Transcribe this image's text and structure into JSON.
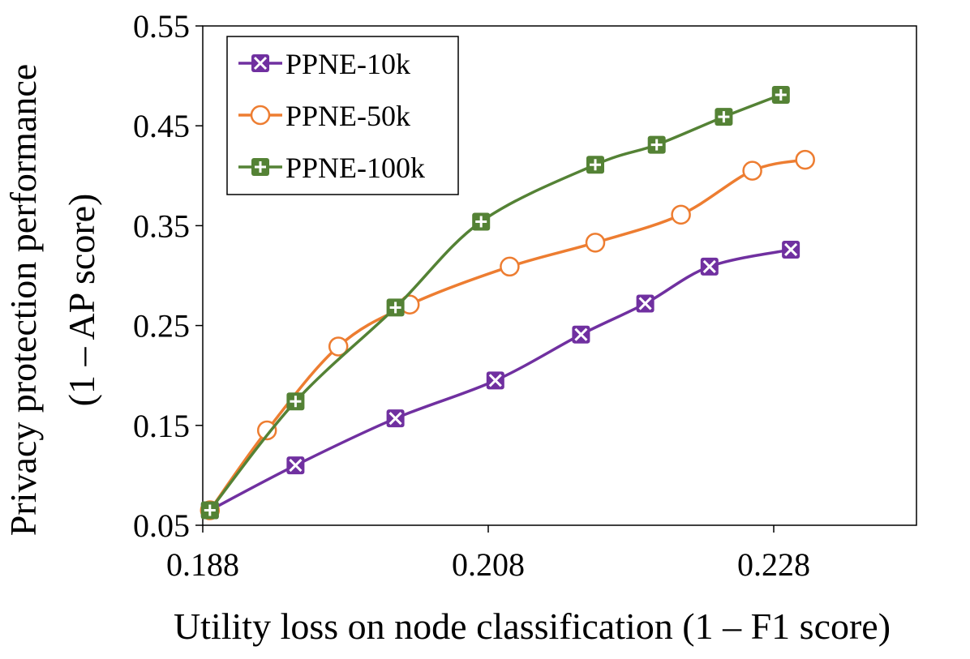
{
  "chart_data": {
    "type": "line",
    "xlabel": "Utility loss on node classification (1 – F1 score)",
    "ylabel_line1": "Privacy protection performance",
    "ylabel_line2": "(1 – AP score)",
    "xlim": [
      0.188,
      0.238
    ],
    "ylim": [
      0.05,
      0.55
    ],
    "xticks": [
      0.188,
      0.208,
      0.228
    ],
    "yticks": [
      0.05,
      0.15,
      0.25,
      0.35,
      0.45,
      0.55
    ],
    "xtick_labels": [
      "0.188",
      "0.208",
      "0.228"
    ],
    "ytick_labels": [
      "0.05",
      "0.15",
      "0.25",
      "0.35",
      "0.45",
      "0.55"
    ],
    "legend_position": "top-left",
    "series": [
      {
        "name": "PPNE-10k",
        "color": "#7030A0",
        "marker": "x-square",
        "x": [
          0.1885,
          0.1945,
          0.2015,
          0.2085,
          0.2145,
          0.219,
          0.2235,
          0.2292
        ],
        "y": [
          0.065,
          0.11,
          0.157,
          0.195,
          0.241,
          0.272,
          0.309,
          0.326
        ]
      },
      {
        "name": "PPNE-50k",
        "color": "#ED7D31",
        "marker": "circle",
        "x": [
          0.1885,
          0.1925,
          0.1975,
          0.2025,
          0.2095,
          0.2155,
          0.2215,
          0.2265,
          0.2302
        ],
        "y": [
          0.065,
          0.145,
          0.229,
          0.271,
          0.309,
          0.333,
          0.361,
          0.405,
          0.416
        ]
      },
      {
        "name": "PPNE-100k",
        "color": "#548235",
        "marker": "plus-square",
        "x": [
          0.1885,
          0.1945,
          0.2015,
          0.2075,
          0.2155,
          0.2198,
          0.2245,
          0.2285
        ],
        "y": [
          0.065,
          0.174,
          0.268,
          0.354,
          0.411,
          0.431,
          0.459,
          0.481
        ]
      }
    ]
  }
}
